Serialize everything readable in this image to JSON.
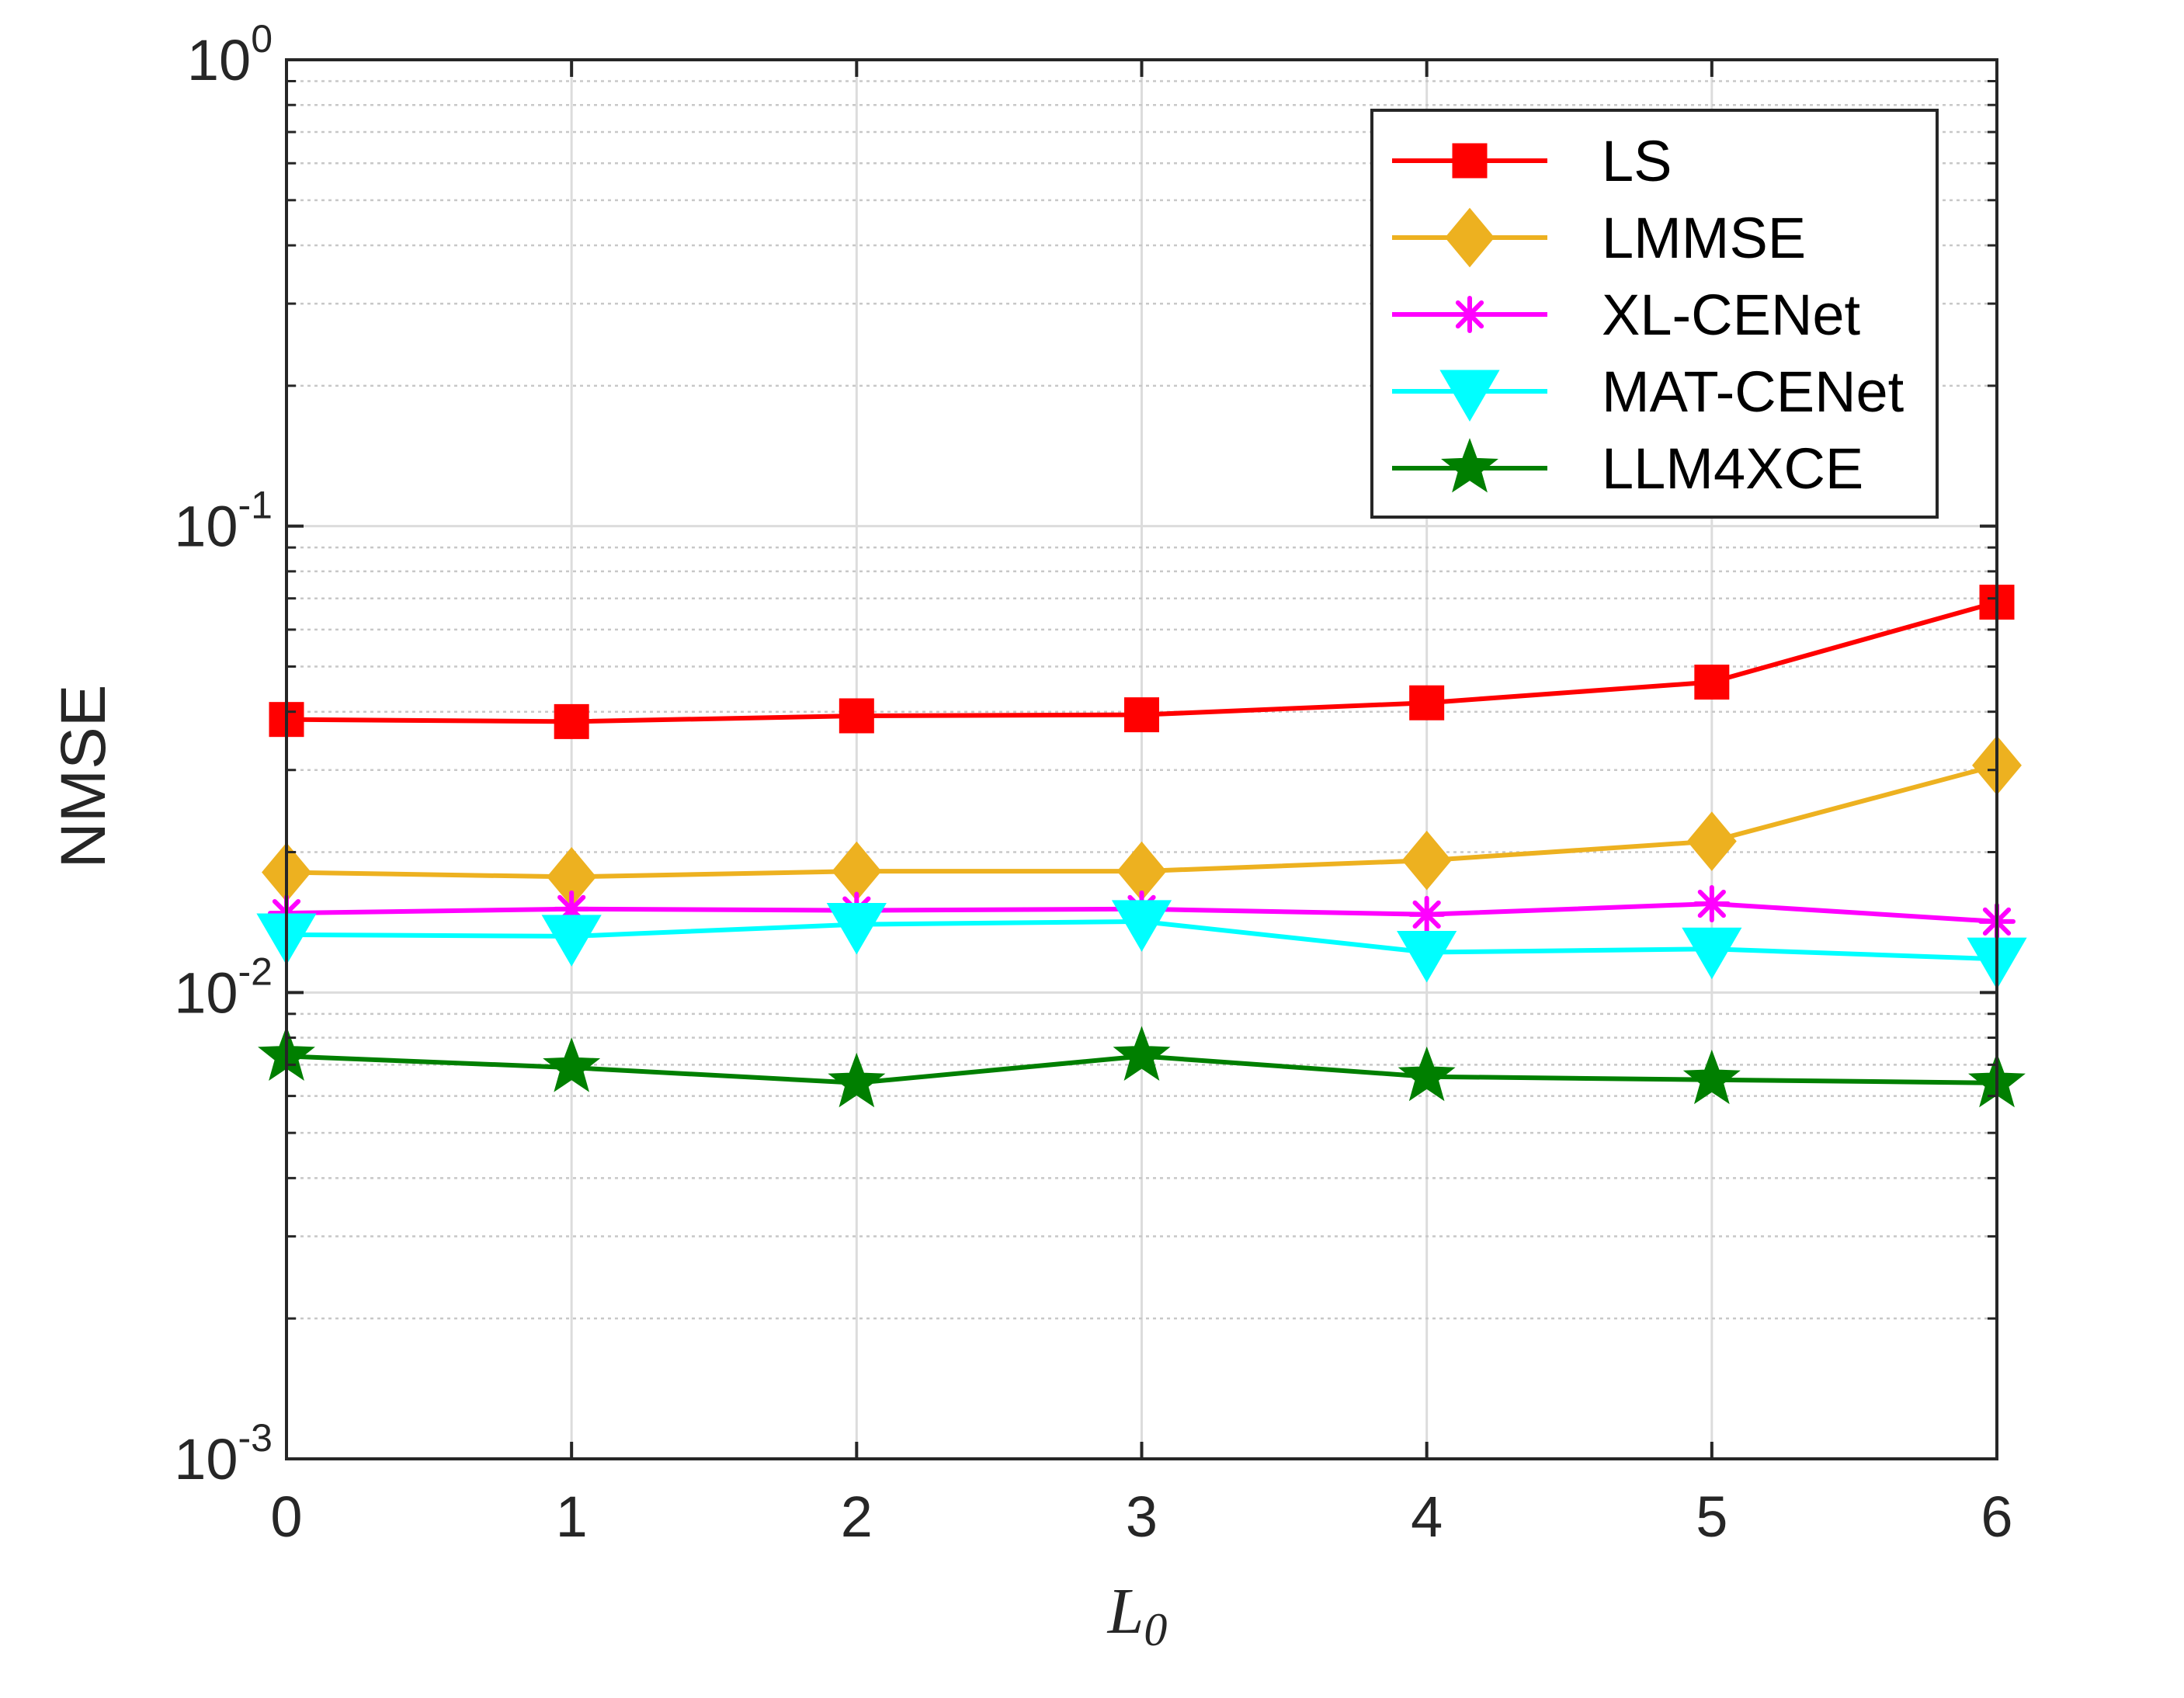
{
  "chart_data": {
    "type": "line",
    "xlabel": "L",
    "xlabel_subscript": "0",
    "ylabel": "NMSE",
    "x": [
      0,
      1,
      2,
      3,
      4,
      5,
      6
    ],
    "xlim": [
      0,
      6
    ],
    "ylim": [
      0.001,
      1
    ],
    "yscale": "log",
    "grid": true,
    "legend_position": "top-right",
    "x_tick_labels": [
      "0",
      "1",
      "2",
      "3",
      "4",
      "5",
      "6"
    ],
    "y_ticks": [
      {
        "value": 1,
        "base": "10",
        "exp": "0"
      },
      {
        "value": 0.1,
        "base": "10",
        "exp": "-1"
      },
      {
        "value": 0.01,
        "base": "10",
        "exp": "-2"
      },
      {
        "value": 0.001,
        "base": "10",
        "exp": "-3"
      }
    ],
    "series": [
      {
        "name": "LS",
        "color": "#ff0000",
        "marker": "square",
        "values": [
          0.0385,
          0.0381,
          0.0392,
          0.0394,
          0.0418,
          0.0463,
          0.0687
        ]
      },
      {
        "name": "LMMSE",
        "color": "#edb120",
        "marker": "diamond",
        "values": [
          0.0181,
          0.0177,
          0.0182,
          0.0182,
          0.0192,
          0.0211,
          0.0307
        ]
      },
      {
        "name": "XL-CENet",
        "color": "#ff00ff",
        "marker": "asterisk",
        "values": [
          0.0148,
          0.0151,
          0.015,
          0.0151,
          0.0147,
          0.0155,
          0.0142
        ]
      },
      {
        "name": "MAT-CENet",
        "color": "#00ffff",
        "marker": "triangle-down",
        "values": [
          0.0133,
          0.0132,
          0.014,
          0.0142,
          0.0122,
          0.0124,
          0.0118
        ]
      },
      {
        "name": "LLM4XCE",
        "color": "#007f00",
        "marker": "star",
        "values": [
          0.0073,
          0.0069,
          0.0064,
          0.0073,
          0.0066,
          0.0065,
          0.0064
        ]
      }
    ]
  }
}
